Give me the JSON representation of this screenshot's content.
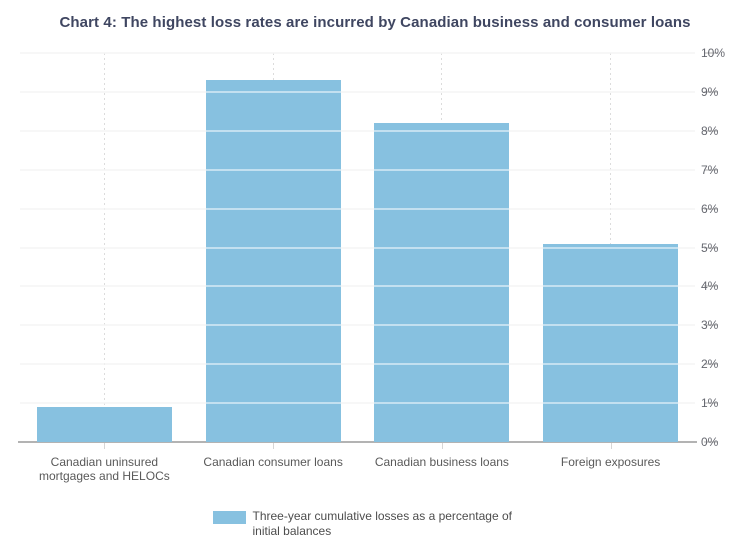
{
  "chart_data": {
    "type": "bar",
    "title": "Chart 4: The highest loss rates are incurred by Canadian business and consumer loans",
    "categories": [
      "Canadian uninsured mortgages and HELOCs",
      "Canadian consumer loans",
      "Canadian business loans",
      "Foreign exposures"
    ],
    "values": [
      0.9,
      9.3,
      8.2,
      5.1
    ],
    "series": [
      {
        "name": "Three-year cumulative losses as a percentage of initial balances",
        "values": [
          0.9,
          9.3,
          8.2,
          5.1
        ]
      }
    ],
    "xlabel": "",
    "ylabel": "",
    "ylim": [
      0,
      10
    ],
    "ytick_step": 1,
    "ytick_labels": [
      "0%",
      "1%",
      "2%",
      "3%",
      "4%",
      "5%",
      "6%",
      "7%",
      "8%",
      "9%",
      "10%"
    ],
    "yaxis_side": "right",
    "grid": true,
    "legend_position": "bottom",
    "legend_label": "Three-year cumulative losses as a percentage of initial balances"
  },
  "colors": {
    "bar": "#87c1e0",
    "title": "#3f4661",
    "axis_line": "#b3b3b3",
    "gridline": "#efefef",
    "gridline_over_bar": "rgba(255,255,255,0.5)",
    "tick": "#d6d6d6",
    "y_axis_label": "#666870",
    "category_label": "#595959",
    "legend_text": "#4d4d4d"
  }
}
